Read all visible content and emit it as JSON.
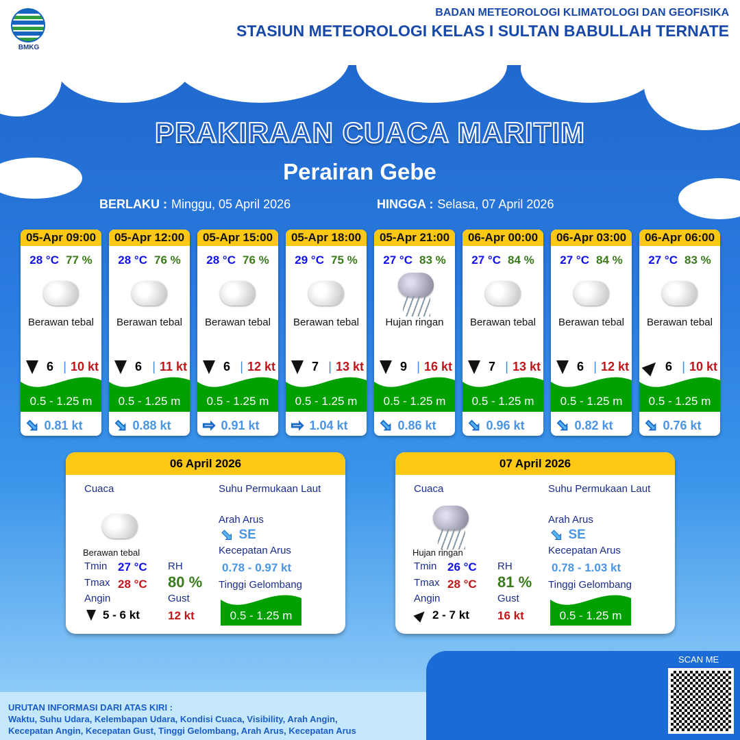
{
  "header": {
    "logo_text": "BMKG",
    "org_line1": "BADAN METEOROLOGI KLIMATOLOGI DAN GEOFISIKA",
    "org_line2": "STASIUN METEOROLOGI KELAS I SULTAN BABULLAH TERNATE"
  },
  "title": "PRAKIRAAN CUACA MARITIM",
  "subtitle": "Perairan Gebe",
  "validity": {
    "from_label": "BERLAKU :",
    "from_value": "Minggu, 05 April 2026",
    "to_label": "HINGGA :",
    "to_value": "Selasa, 07 April 2026"
  },
  "colors": {
    "header_yellow": "#fcc816",
    "wave_green": "#00a000",
    "temp_blue": "#1010ee",
    "rh_green": "#3a7a1a",
    "gust_red": "#c0161a"
  },
  "forecasts": [
    {
      "time": "05-Apr 09:00",
      "temp": "28 °C",
      "rh": "77 %",
      "icon": "cloud-icon",
      "weather": "Berawan tebal",
      "wind_dir": "S",
      "wind": "6",
      "gust": "10 kt",
      "wave": "0.5 - 1.25 m",
      "current_dir": "SE",
      "current": "0.81 kt"
    },
    {
      "time": "05-Apr 12:00",
      "temp": "28 °C",
      "rh": "76 %",
      "icon": "cloud-icon",
      "weather": "Berawan tebal",
      "wind_dir": "S",
      "wind": "6",
      "gust": "11 kt",
      "wave": "0.5 - 1.25 m",
      "current_dir": "SE",
      "current": "0.88 kt"
    },
    {
      "time": "05-Apr 15:00",
      "temp": "28 °C",
      "rh": "76 %",
      "icon": "cloud-icon",
      "weather": "Berawan tebal",
      "wind_dir": "S",
      "wind": "6",
      "gust": "12 kt",
      "wave": "0.5 - 1.25 m",
      "current_dir": "E",
      "current": "0.91 kt"
    },
    {
      "time": "05-Apr 18:00",
      "temp": "29 °C",
      "rh": "75 %",
      "icon": "cloud-icon",
      "weather": "Berawan tebal",
      "wind_dir": "S",
      "wind": "7",
      "gust": "13 kt",
      "wave": "0.5 - 1.25 m",
      "current_dir": "E",
      "current": "1.04 kt"
    },
    {
      "time": "05-Apr 21:00",
      "temp": "27 °C",
      "rh": "83 %",
      "icon": "rain-cloud-icon",
      "weather": "Hujan ringan",
      "wind_dir": "S",
      "wind": "9",
      "gust": "16 kt",
      "wave": "0.5 - 1.25 m",
      "current_dir": "SE",
      "current": "0.86 kt"
    },
    {
      "time": "06-Apr 00:00",
      "temp": "27 °C",
      "rh": "84 %",
      "icon": "cloud-icon",
      "weather": "Berawan tebal",
      "wind_dir": "S",
      "wind": "7",
      "gust": "13 kt",
      "wave": "0.5 - 1.25 m",
      "current_dir": "SE",
      "current": "0.96 kt"
    },
    {
      "time": "06-Apr 03:00",
      "temp": "27 °C",
      "rh": "84 %",
      "icon": "cloud-icon",
      "weather": "Berawan tebal",
      "wind_dir": "S",
      "wind": "6",
      "gust": "12 kt",
      "wave": "0.5 - 1.25 m",
      "current_dir": "SE",
      "current": "0.82 kt"
    },
    {
      "time": "06-Apr 06:00",
      "temp": "27 °C",
      "rh": "83 %",
      "icon": "cloud-icon",
      "weather": "Berawan tebal",
      "wind_dir": "NE",
      "wind": "6",
      "gust": "10 kt",
      "wave": "0.5 - 1.25 m",
      "current_dir": "SE",
      "current": "0.76 kt"
    }
  ],
  "labels": {
    "cuaca": "Cuaca",
    "sst": "Suhu Permukaan Laut",
    "arah_arus": "Arah Arus",
    "kec_arus": "Kecepatan Arus",
    "tinggi": "Tinggi Gelombang",
    "tmin": "Tmin",
    "tmax": "Tmax",
    "rh": "RH",
    "angin": "Angin",
    "gust": "Gust"
  },
  "daily": [
    {
      "date": "06 April 2026",
      "icon": "cloud-icon",
      "weather": "Berawan tebal",
      "tmin": "27 °C",
      "tmax": "28 °C",
      "rh": "80 %",
      "wind_dir": "S",
      "wind": "5  - 6 kt",
      "gust": "12 kt",
      "current_dir": "SE",
      "current_speed": "0.78 - 0.97 kt",
      "wave": "0.5 - 1.25 m"
    },
    {
      "date": "07 April 2026",
      "icon": "rain-cloud-icon",
      "weather": "Hujan ringan",
      "tmin": "26 °C",
      "tmax": "28 °C",
      "rh": "81 %",
      "wind_dir": "NE",
      "wind": "2  - 7 kt",
      "gust": "16 kt",
      "current_dir": "SE",
      "current_speed": "0.78 - 1.03 kt",
      "wave": "0.5 - 1.25 m"
    }
  ],
  "footer": {
    "note_title": "URUTAN INFORMASI DARI ATAS KIRI :",
    "note_line1": "Waktu, Suhu Udara, Kelembapan Udara, Kondisi Cuaca, Visibility, Arah Angin,",
    "note_line2": "Kecepatan Angin, Kecepatan Gust, Tinggi Gelombang, Arah Arus, Kecepatan Arus",
    "scan_label": "SCAN ME"
  }
}
